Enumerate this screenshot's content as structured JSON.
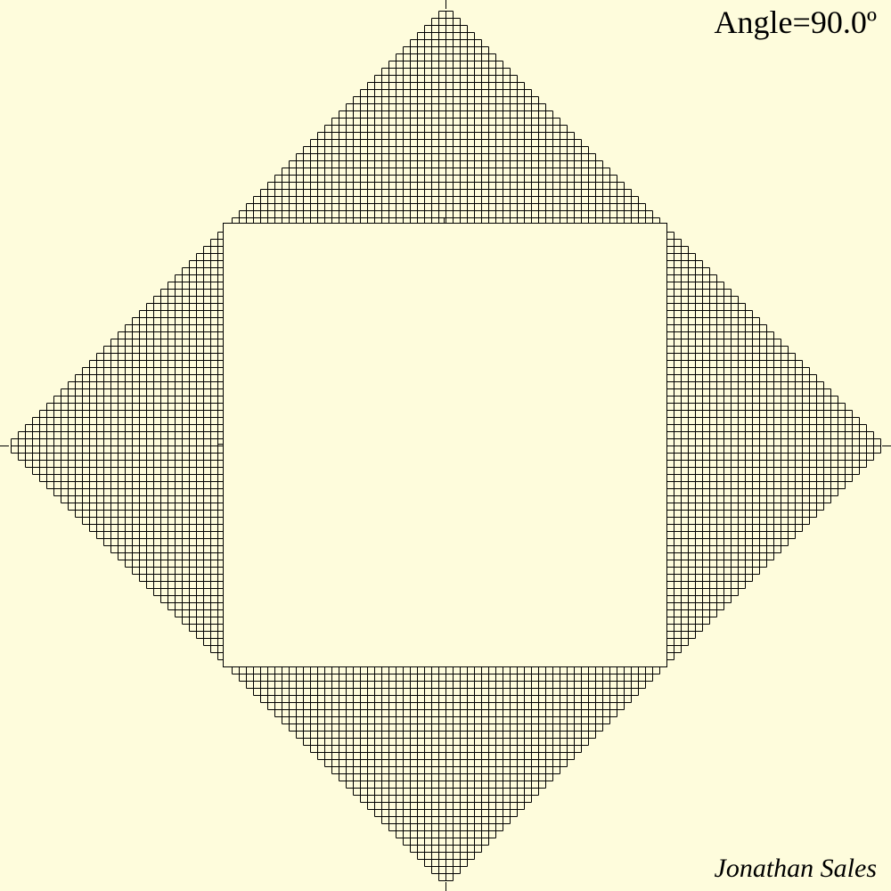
{
  "angle_label": "Angle=90.0º",
  "author": "Jonathan Sales",
  "colors": {
    "background": "#fefcdc",
    "line": "#000000"
  }
}
